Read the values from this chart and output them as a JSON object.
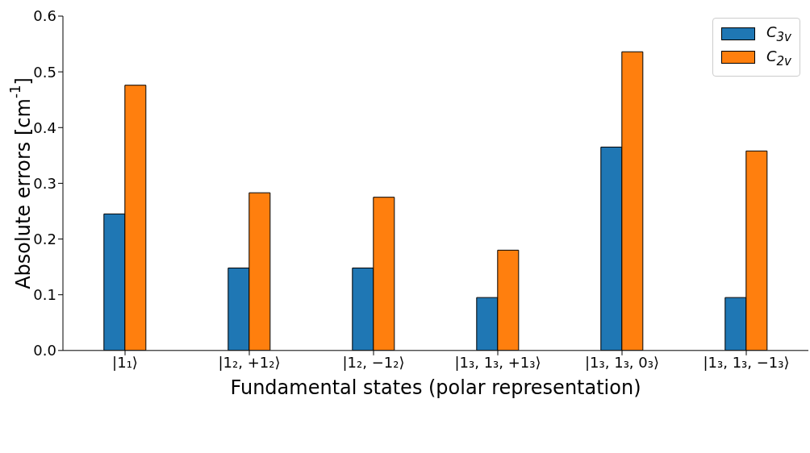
{
  "chart_data": {
    "type": "bar",
    "xlabel": "Fundamental states (polar representation)",
    "ylabel": "Absolute errors [cm$^{-1}$]",
    "categories": [
      "|1₁⟩",
      "|1₂, +1₂⟩",
      "|1₂, −1₂⟩",
      "|1₃, 1₃, +1₃⟩",
      "|1₃, 1₃, 0₃⟩",
      "|1₃, 1₃, −1₃⟩"
    ],
    "series": [
      {
        "name": "C$_{3v}$",
        "color": "#1f77b4",
        "values": [
          0.245,
          0.148,
          0.148,
          0.095,
          0.365,
          0.095
        ]
      },
      {
        "name": "C$_{2v}$",
        "color": "#ff7f0e",
        "values": [
          0.476,
          0.283,
          0.275,
          0.18,
          0.536,
          0.358
        ]
      }
    ],
    "ylim": [
      0,
      0.6
    ],
    "yticks": [
      {
        "value": 0,
        "label": "0.0"
      },
      0.1,
      0.2,
      0.3,
      0.4,
      0.5,
      0.6
    ],
    "legend": "top right",
    "grid": false
  }
}
